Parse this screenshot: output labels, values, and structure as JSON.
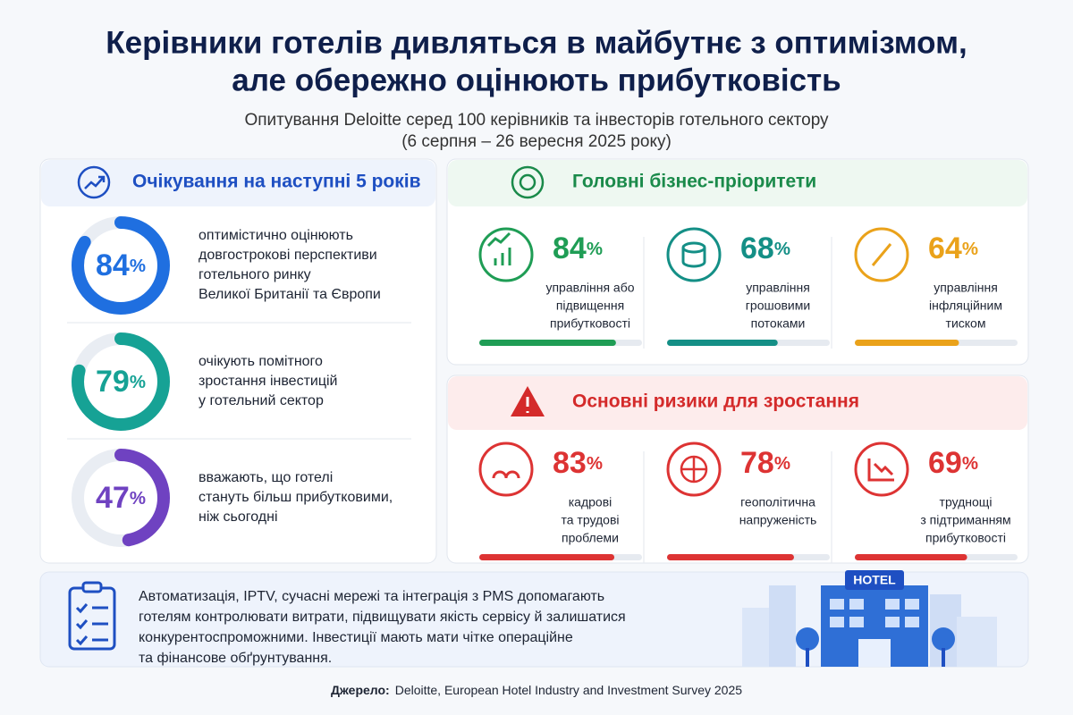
{
  "title": [
    "Керівники готелів дивляться в майбутнє з оптимізмом,",
    "але обережно оцінюють прибутковість"
  ],
  "subtitle": [
    "Опитування Deloitte серед 100 керівників та інвесторів готельного сектору",
    "(6 серпня – 26 вересня 2025 року)"
  ],
  "scale": [
    0,
    100
  ],
  "expectations": {
    "title": "Очікування на наступні 5 років",
    "color": "#1e4fc2",
    "items": [
      {
        "value": 84,
        "unit": "%",
        "color": "#1f6fe0",
        "lines": [
          "оптимістично оцінюють",
          "довгострокові перспективи",
          "готельного ринку",
          "Великої Британії та Європи"
        ]
      },
      {
        "value": 79,
        "unit": "%",
        "color": "#16a295",
        "lines": [
          "очікують помітного",
          "зростання інвестицій",
          "у готельний сектор"
        ]
      },
      {
        "value": 47,
        "unit": "%",
        "color": "#6f42c1",
        "lines": [
          "вважають, що готелі",
          "стануть більш прибутковими,",
          "ніж сьогодні"
        ]
      }
    ]
  },
  "priorities": {
    "title": "Головні бізнес-пріоритети",
    "color": "#1a8a4a",
    "items": [
      {
        "value": 84,
        "unit": "%",
        "color": "#1f9d55",
        "lines": [
          "управління або",
          "підвищення",
          "прибутковості"
        ]
      },
      {
        "value": 68,
        "unit": "%",
        "color": "#148f86",
        "lines": [
          "управління",
          "грошовими",
          "потоками"
        ]
      },
      {
        "value": 64,
        "unit": "%",
        "color": "#eaa21a",
        "lines": [
          "управління",
          "інфляційним",
          "тиском"
        ]
      }
    ]
  },
  "risks": {
    "title": "Основні ризики для зростання",
    "color": "#d42a2a",
    "items": [
      {
        "value": 83,
        "unit": "%",
        "color": "#dd3333",
        "lines": [
          "кадрові",
          "та трудові",
          "проблеми"
        ]
      },
      {
        "value": 78,
        "unit": "%",
        "color": "#dd3333",
        "lines": [
          "геополітична",
          "напруженість"
        ]
      },
      {
        "value": 69,
        "unit": "%",
        "color": "#dd3333",
        "lines": [
          "труднощі",
          "з підтриманням",
          "прибутковості"
        ]
      }
    ]
  },
  "note": [
    "Автоматизація, IPTV, сучасні мережі та інтеграція з PMS допомагають",
    "готелям контролювати витрати, підвищувати якість сервісу й залишатися",
    "конкурентоспроможними. Інвестиції мають мати чітке операційне",
    "та фінансове обґрунтування."
  ],
  "hotel_sign": "HOTEL",
  "source": {
    "label": "Джерело:",
    "text": "Deloitte, European Hotel Industry and Investment Survey 2025"
  }
}
